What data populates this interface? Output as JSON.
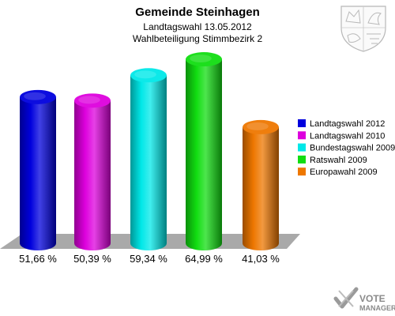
{
  "header": {
    "title": "Gemeinde Steinhagen",
    "subtitle1": "Landtagswahl 13.05.2012",
    "subtitle2": "Wahlbeteiligung Stimmbezirk 2"
  },
  "chart_data": {
    "type": "bar",
    "categories": [
      "Landtagswahl 2012",
      "Landtagswahl 2010",
      "Bundestagswahl 2009",
      "Ratswahl 2009",
      "Europawahl 2009"
    ],
    "values": [
      51.66,
      50.39,
      59.34,
      64.99,
      41.03
    ],
    "value_labels": [
      "51,66 %",
      "50,39 %",
      "59,34 %",
      "64,99 %",
      "41,03 %"
    ],
    "colors": [
      "#0000dd",
      "#dd00dd",
      "#00e8e8",
      "#11dd11",
      "#ee7700"
    ],
    "legend_position": "right",
    "grid": false
  },
  "logo": {
    "name": "coat-of-arms-icon"
  },
  "brand": {
    "line1": "VOTE",
    "line2": "MANAGER",
    "icon": "checkmark-icon"
  }
}
